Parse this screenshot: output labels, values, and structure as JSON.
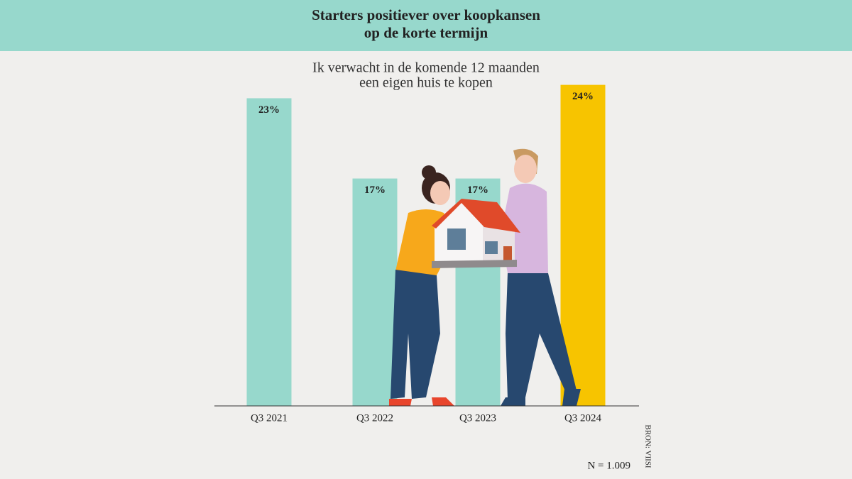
{
  "chart_data": {
    "type": "bar",
    "title": [
      "Starters positiever over koopkansen",
      "op de korte termijn"
    ],
    "subtitle": [
      "Ik verwacht in de komende 12 maanden",
      "een eigen huis te kopen"
    ],
    "categories": [
      "Q3 2021",
      "Q3 2022",
      "Q3 2023",
      "Q3 2024"
    ],
    "values": [
      23,
      17,
      17,
      24
    ],
    "value_labels": [
      "23%",
      "17%",
      "17%",
      "24%"
    ],
    "colors": [
      "#97d8cc",
      "#97d8cc",
      "#97d8cc",
      "#f7c400"
    ],
    "note": "N = 1.009",
    "source": "BRON: VIISI"
  }
}
